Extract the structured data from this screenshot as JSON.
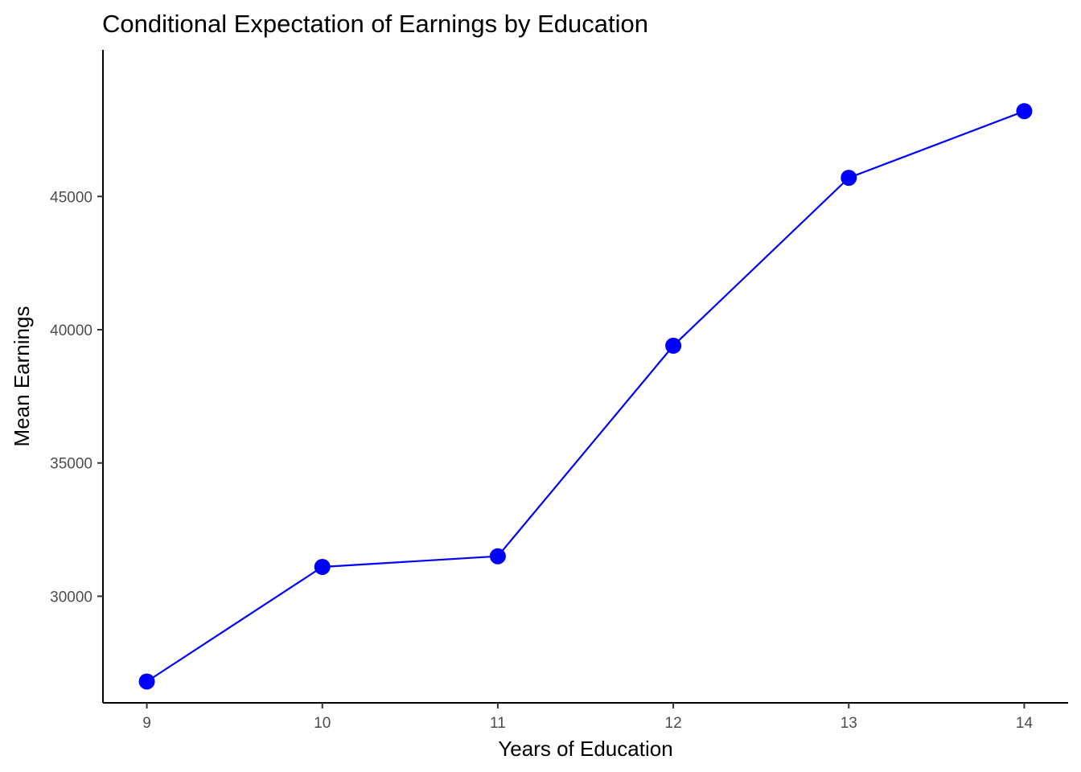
{
  "chart_data": {
    "type": "line",
    "title": "Conditional Expectation of Earnings by Education",
    "xlabel": "Years of Education",
    "ylabel": "Mean Earnings",
    "x": [
      9,
      10,
      11,
      12,
      13,
      14
    ],
    "y": [
      26800,
      31100,
      31500,
      39400,
      45700,
      48200
    ],
    "xticks": [
      "9",
      "10",
      "11",
      "12",
      "13",
      "14"
    ],
    "yticks": [
      "30000",
      "35000",
      "40000",
      "45000"
    ],
    "xlim": [
      8.75,
      14.25
    ],
    "ylim": [
      26000,
      50500
    ],
    "grid": false,
    "legend": "none",
    "series_color": "#0000ff",
    "marker": "circle"
  }
}
